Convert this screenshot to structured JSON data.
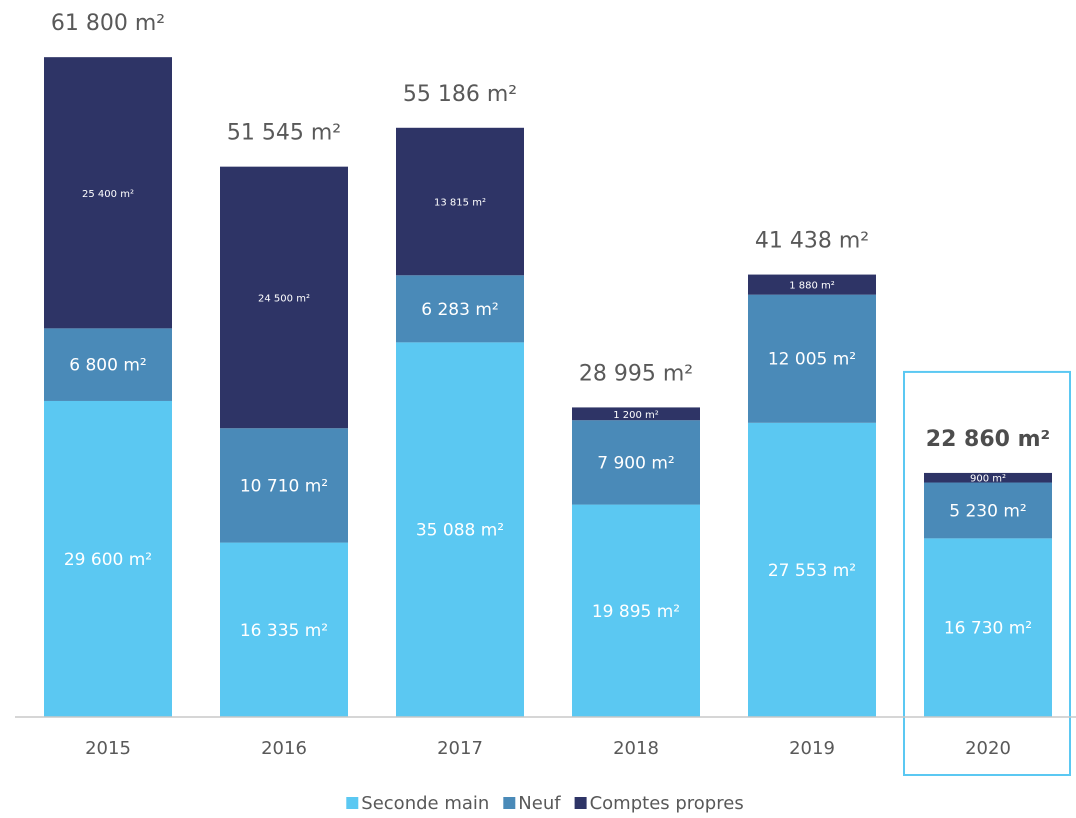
{
  "chart_data": {
    "type": "stacked_bar",
    "categories": [
      "2015",
      "2016",
      "2017",
      "2018",
      "2019",
      "2020"
    ],
    "series": [
      {
        "name": "Seconde main",
        "color": "#5bc8f2",
        "values": [
          29600,
          16335,
          35088,
          19895,
          27553,
          16730
        ],
        "value_labels": [
          "29 600 m²",
          "16 335 m²",
          "35 088 m²",
          "19 895 m²",
          "27 553 m²",
          "16 730 m²"
        ]
      },
      {
        "name": "Neuf",
        "color": "#4a8ab8",
        "values": [
          6800,
          10710,
          6283,
          7900,
          12005,
          5230
        ],
        "value_labels": [
          "6 800 m²",
          "10 710 m²",
          "6 283 m²",
          "7 900 m²",
          "12 005 m²",
          "5 230 m²"
        ]
      },
      {
        "name": "Comptes propres",
        "color": "#2e3466",
        "values": [
          25400,
          24500,
          13815,
          1200,
          1880,
          900
        ],
        "value_labels": [
          "25 400 m²",
          "24 500 m²",
          "13 815 m²",
          "1 200 m²",
          "1 880 m²",
          "900 m²"
        ]
      }
    ],
    "totals": [
      61800,
      51545,
      55186,
      28995,
      41438,
      22860
    ],
    "total_labels": [
      "61 800 m²",
      "51 545 m²",
      "55 186 m²",
      "28 995 m²",
      "41 438 m²",
      "22 860 m²"
    ],
    "ylim": [
      0,
      65000
    ],
    "highlight": "2020",
    "legend": "bottom"
  }
}
